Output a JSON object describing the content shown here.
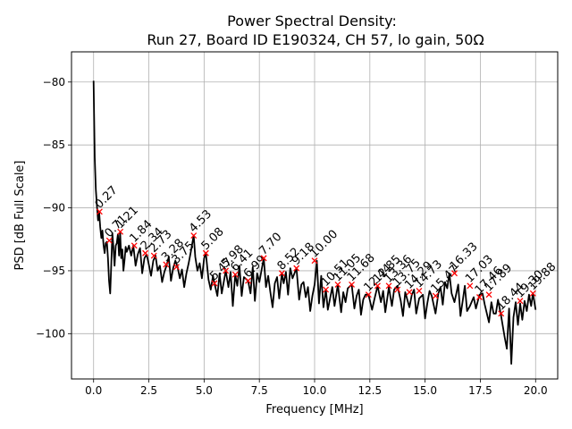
{
  "chart_data": {
    "type": "line",
    "title": "Power Spectral Density:",
    "subtitle": "Run 27, Board ID E190324, CH 57, lo gain, 50Ω",
    "xlabel": "Frequency [MHz]",
    "ylabel": "PSD [dB Full Scale]",
    "xlim": [
      -1.0,
      21.0
    ],
    "ylim": [
      -103.6,
      -77.6
    ],
    "xticks": [
      0.0,
      2.5,
      5.0,
      7.5,
      10.0,
      12.5,
      15.0,
      17.5,
      20.0
    ],
    "xtick_labels": [
      "0.0",
      "2.5",
      "5.0",
      "7.5",
      "10.0",
      "12.5",
      "15.0",
      "17.5",
      "20.0"
    ],
    "yticks": [
      -80,
      -85,
      -90,
      -95,
      -100
    ],
    "ytick_labels": [
      "−80",
      "−85",
      "−90",
      "−95",
      "−100"
    ],
    "grid": true,
    "line_color": "#000000",
    "marker_color": "#ff0000",
    "series": [
      {
        "x": [
          0.0,
          0.05,
          0.1,
          0.15,
          0.2,
          0.25,
          0.3,
          0.35,
          0.4,
          0.45,
          0.5,
          0.55,
          0.6,
          0.65,
          0.7,
          0.75,
          0.8,
          0.85,
          0.9,
          0.95,
          1.0,
          1.05,
          1.1,
          1.15,
          1.2,
          1.25,
          1.3,
          1.35,
          1.4,
          1.45,
          1.5,
          1.6,
          1.7,
          1.8,
          1.9,
          2.0,
          2.1,
          2.2,
          2.3,
          2.4,
          2.5,
          2.6,
          2.7,
          2.8,
          2.9,
          3.0,
          3.1,
          3.2,
          3.3,
          3.4,
          3.5,
          3.6,
          3.7,
          3.8,
          3.9,
          4.0,
          4.1,
          4.2,
          4.3,
          4.4,
          4.53,
          4.6,
          4.7,
          4.8,
          4.9,
          5.0,
          5.08,
          5.2,
          5.3,
          5.4,
          5.47,
          5.6,
          5.7,
          5.8,
          5.98,
          6.1,
          6.2,
          6.3,
          6.41,
          6.5,
          6.6,
          6.7,
          6.8,
          6.99,
          7.1,
          7.2,
          7.3,
          7.4,
          7.5,
          7.7,
          7.8,
          7.9,
          8.0,
          8.1,
          8.2,
          8.3,
          8.4,
          8.52,
          8.6,
          8.7,
          8.8,
          8.9,
          9.0,
          9.18,
          9.3,
          9.4,
          9.5,
          9.6,
          9.7,
          9.8,
          9.9,
          10.0,
          10.1,
          10.2,
          10.3,
          10.4,
          10.51,
          10.6,
          10.7,
          10.8,
          10.9,
          11.05,
          11.2,
          11.3,
          11.4,
          11.5,
          11.68,
          11.8,
          11.9,
          12.0,
          12.1,
          12.2,
          12.3,
          12.44,
          12.6,
          12.7,
          12.85,
          13.0,
          13.1,
          13.2,
          13.36,
          13.5,
          13.6,
          13.75,
          13.9,
          14.0,
          14.1,
          14.29,
          14.4,
          14.5,
          14.6,
          14.73,
          14.9,
          15.0,
          15.1,
          15.2,
          15.3,
          15.47,
          15.6,
          15.7,
          15.8,
          15.9,
          16.0,
          16.1,
          16.2,
          16.33,
          16.5,
          16.6,
          16.7,
          16.8,
          16.9,
          17.03,
          17.2,
          17.3,
          17.46,
          17.6,
          17.7,
          17.89,
          18.0,
          18.1,
          18.2,
          18.3,
          18.44,
          18.6,
          18.7,
          18.8,
          18.9,
          19.0,
          19.1,
          19.2,
          19.3,
          19.4,
          19.5,
          19.6,
          19.7,
          19.8,
          19.88,
          20.0
        ],
        "y": [
          -79.9,
          -86.0,
          -88.5,
          -89.8,
          -91.0,
          -90.3,
          -91.5,
          -92.4,
          -91.8,
          -93.0,
          -93.6,
          -92.8,
          -92.7,
          -94.0,
          -95.8,
          -96.8,
          -94.5,
          -92.0,
          -93.2,
          -94.6,
          -93.0,
          -92.8,
          -92.1,
          -93.8,
          -91.9,
          -94.0,
          -93.3,
          -95.0,
          -94.2,
          -93.1,
          -93.5,
          -93.0,
          -93.8,
          -93.0,
          -94.6,
          -93.7,
          -93.2,
          -95.2,
          -94.0,
          -93.7,
          -94.5,
          -95.4,
          -94.2,
          -93.8,
          -95.0,
          -94.6,
          -95.9,
          -95.1,
          -94.6,
          -93.9,
          -95.8,
          -94.8,
          -94.2,
          -94.7,
          -95.6,
          -94.9,
          -96.3,
          -95.2,
          -94.4,
          -93.5,
          -92.2,
          -93.9,
          -95.0,
          -94.4,
          -95.6,
          -94.0,
          -93.6,
          -95.7,
          -96.5,
          -95.4,
          -96.0,
          -97.0,
          -95.2,
          -96.8,
          -95.0,
          -96.3,
          -95.1,
          -97.8,
          -95.3,
          -96.2,
          -94.6,
          -97.0,
          -95.5,
          -95.8,
          -96.8,
          -94.7,
          -97.4,
          -95.2,
          -95.9,
          -94.0,
          -96.3,
          -95.4,
          -96.7,
          -97.9,
          -96.0,
          -95.5,
          -97.2,
          -95.2,
          -96.0,
          -95.1,
          -96.9,
          -94.8,
          -95.6,
          -94.8,
          -97.3,
          -96.1,
          -95.9,
          -97.1,
          -96.3,
          -98.2,
          -97.0,
          -96.1,
          -94.2,
          -97.6,
          -95.4,
          -97.9,
          -96.5,
          -98.1,
          -97.2,
          -96.3,
          -97.8,
          -96.1,
          -98.3,
          -96.7,
          -97.5,
          -96.4,
          -96.1,
          -98.0,
          -97.0,
          -96.5,
          -98.5,
          -97.3,
          -96.9,
          -96.9,
          -98.1,
          -97.3,
          -96.2,
          -97.5,
          -96.6,
          -98.3,
          -96.3,
          -97.8,
          -96.5,
          -96.2,
          -97.4,
          -98.6,
          -96.7,
          -97.9,
          -96.9,
          -96.5,
          -98.4,
          -97.2,
          -96.9,
          -98.8,
          -97.6,
          -96.6,
          -97.0,
          -98.4,
          -96.8,
          -96.3,
          -97.7,
          -95.9,
          -96.4,
          -95.2,
          -96.8,
          -97.5,
          -96.1,
          -98.6,
          -97.4,
          -96.2,
          -98.2,
          -97.8,
          -97.1,
          -98.0,
          -96.9,
          -96.8,
          -97.7,
          -99.1,
          -97.5,
          -98.4,
          -98.4,
          -97.3,
          -98.6,
          -100.3,
          -101.2,
          -98.0,
          -102.4,
          -98.7,
          -97.5,
          -99.3,
          -97.6,
          -98.9,
          -97.4,
          -98.2,
          -96.9,
          -97.8,
          -96.8,
          -98.1
        ]
      }
    ],
    "peaks": [
      {
        "x": 0.27,
        "y": -90.3,
        "label": "0.27"
      },
      {
        "x": 0.71,
        "y": -92.6,
        "label": "0.71"
      },
      {
        "x": 1.21,
        "y": -91.9,
        "label": "1.21"
      },
      {
        "x": 1.84,
        "y": -93.0,
        "label": "1.84"
      },
      {
        "x": 2.34,
        "y": -93.6,
        "label": "2.34"
      },
      {
        "x": 2.73,
        "y": -93.8,
        "label": "2.73"
      },
      {
        "x": 3.28,
        "y": -94.5,
        "label": "3.28"
      },
      {
        "x": 3.75,
        "y": -94.7,
        "label": "3.75"
      },
      {
        "x": 4.53,
        "y": -92.2,
        "label": "4.53"
      },
      {
        "x": 5.08,
        "y": -93.6,
        "label": "5.08"
      },
      {
        "x": 5.47,
        "y": -96.0,
        "label": "5.47"
      },
      {
        "x": 5.98,
        "y": -95.0,
        "label": "5.98"
      },
      {
        "x": 6.41,
        "y": -95.3,
        "label": "6.41"
      },
      {
        "x": 6.99,
        "y": -95.8,
        "label": "6.99"
      },
      {
        "x": 7.7,
        "y": -94.0,
        "label": "7.70"
      },
      {
        "x": 8.52,
        "y": -95.2,
        "label": "8.52"
      },
      {
        "x": 9.18,
        "y": -94.8,
        "label": "9.18"
      },
      {
        "x": 10.0,
        "y": -94.2,
        "label": "10.00"
      },
      {
        "x": 10.51,
        "y": -96.5,
        "label": "10.51"
      },
      {
        "x": 11.05,
        "y": -96.1,
        "label": "11.05"
      },
      {
        "x": 11.68,
        "y": -96.1,
        "label": "11.68"
      },
      {
        "x": 12.44,
        "y": -96.9,
        "label": "12.44"
      },
      {
        "x": 12.85,
        "y": -96.2,
        "label": "12.85"
      },
      {
        "x": 13.36,
        "y": -96.2,
        "label": "13.36"
      },
      {
        "x": 13.75,
        "y": -96.5,
        "label": "13.75"
      },
      {
        "x": 14.29,
        "y": -96.7,
        "label": "14.29"
      },
      {
        "x": 14.73,
        "y": -96.6,
        "label": "14.73"
      },
      {
        "x": 15.47,
        "y": -97.0,
        "label": "15.47"
      },
      {
        "x": 16.33,
        "y": -95.2,
        "label": "16.33"
      },
      {
        "x": 17.03,
        "y": -96.2,
        "label": "17.03"
      },
      {
        "x": 17.46,
        "y": -97.1,
        "label": "17.46"
      },
      {
        "x": 17.89,
        "y": -96.9,
        "label": "17.89"
      },
      {
        "x": 18.44,
        "y": -98.4,
        "label": "18.44"
      },
      {
        "x": 19.3,
        "y": -97.4,
        "label": "19.30"
      },
      {
        "x": 19.88,
        "y": -96.8,
        "label": "19.88"
      }
    ]
  }
}
